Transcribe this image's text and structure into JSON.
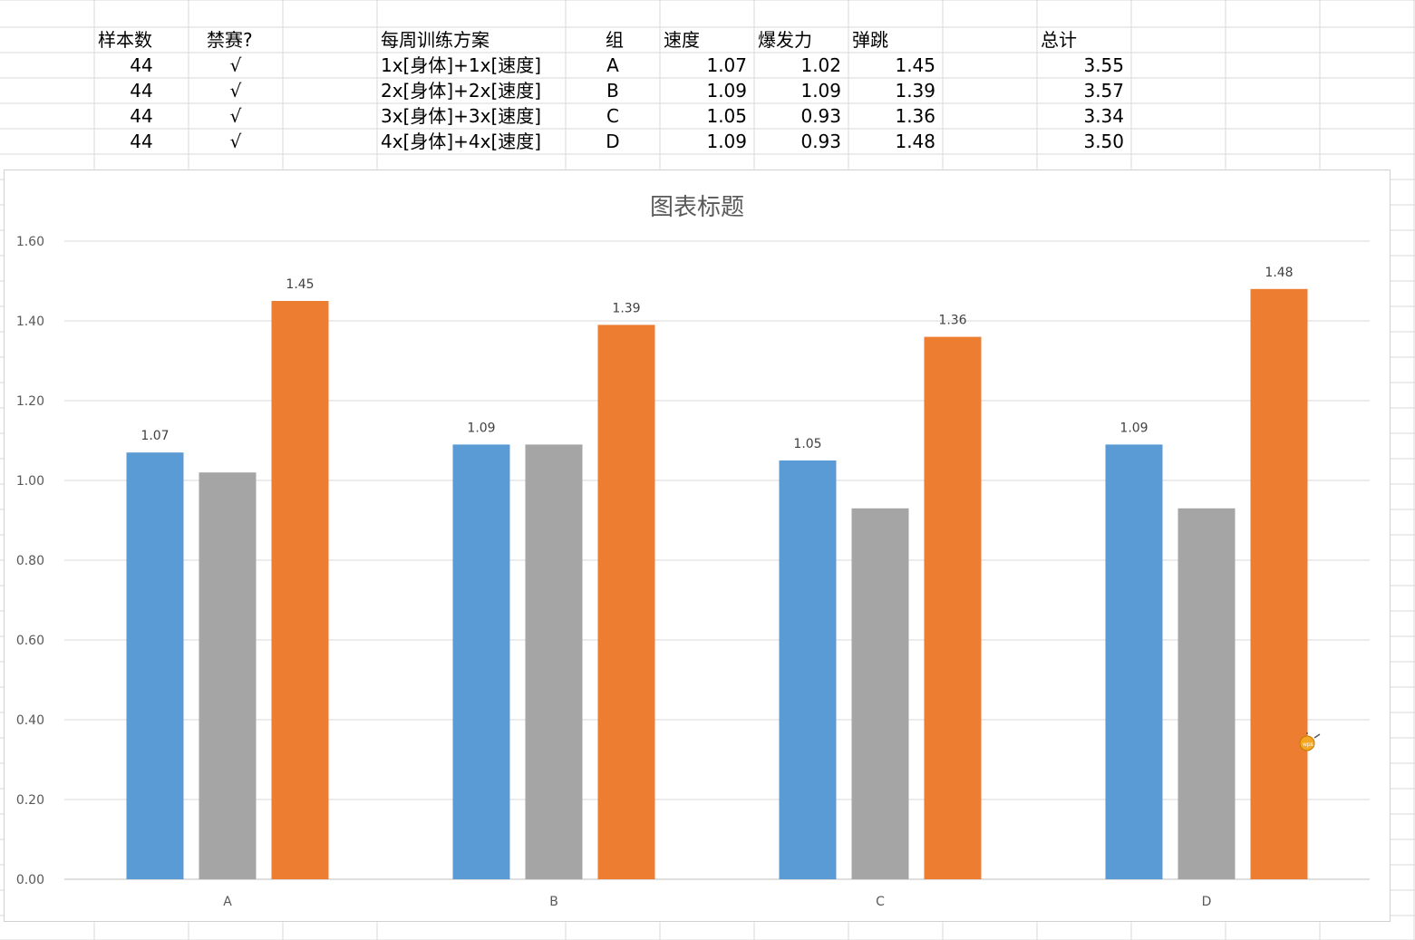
{
  "sheet": {
    "headers": [
      "样本数",
      "禁赛?",
      "每周训练方案",
      "组",
      "速度",
      "爆发力",
      "弹跳",
      "总计"
    ],
    "rows": [
      {
        "samples": "44",
        "banned": "√",
        "plan": "1x[身体]+1x[速度]",
        "group": "A",
        "speed": "1.07",
        "power": "1.02",
        "jump": "1.45",
        "total": "3.55"
      },
      {
        "samples": "44",
        "banned": "√",
        "plan": "2x[身体]+2x[速度]",
        "group": "B",
        "speed": "1.09",
        "power": "1.09",
        "jump": "1.39",
        "total": "3.57"
      },
      {
        "samples": "44",
        "banned": "√",
        "plan": "3x[身体]+3x[速度]",
        "group": "C",
        "speed": "1.05",
        "power": "0.93",
        "jump": "1.36",
        "total": "3.34"
      },
      {
        "samples": "44",
        "banned": "√",
        "plan": "4x[身体]+4x[速度]",
        "group": "D",
        "speed": "1.09",
        "power": "0.93",
        "jump": "1.48",
        "total": "3.50"
      }
    ]
  },
  "chart_data": {
    "type": "bar",
    "title": "图表标题",
    "categories": [
      "A",
      "B",
      "C",
      "D"
    ],
    "series": [
      {
        "values": [
          1.07,
          1.09,
          1.05,
          1.09
        ],
        "color": "#5b9bd5",
        "labels": true
      },
      {
        "values": [
          1.02,
          1.09,
          0.93,
          0.93
        ],
        "color": "#a5a5a5",
        "labels": false
      },
      {
        "values": [
          1.45,
          1.39,
          1.36,
          1.48
        ],
        "color": "#ed7d31",
        "labels": true
      }
    ],
    "yticks": [
      "0.00",
      "0.20",
      "0.40",
      "0.60",
      "0.80",
      "1.00",
      "1.20",
      "1.40",
      "1.60"
    ],
    "ylim": [
      0,
      1.6
    ],
    "grid": true,
    "legend": "none"
  },
  "badge": {
    "icon": "wps-logo-icon",
    "text": "wps"
  }
}
